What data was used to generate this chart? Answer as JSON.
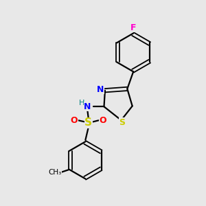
{
  "bg_color": "#e8e8e8",
  "bond_color": "#000000",
  "N_color": "#0000ff",
  "S_thiazole_color": "#cccc00",
  "S_sulfonyl_color": "#cccc00",
  "O_color": "#ff0000",
  "F_color": "#ff00cc",
  "H_color": "#008080",
  "figsize": [
    3.0,
    3.0
  ],
  "dpi": 100,
  "xlim": [
    0,
    10
  ],
  "ylim": [
    0,
    10
  ]
}
